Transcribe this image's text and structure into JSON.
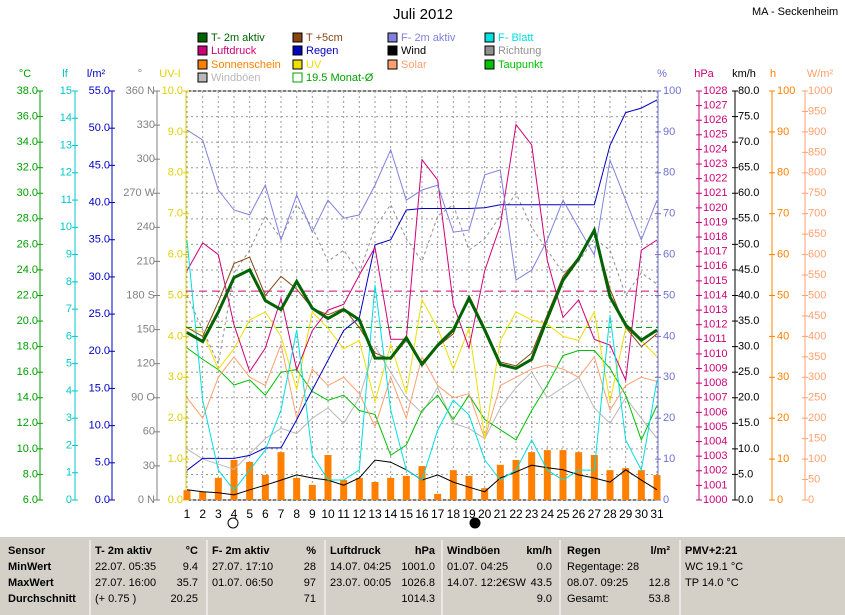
{
  "chart_data": {
    "type": "weather",
    "title": "Juli 2012",
    "station": "MA - Seckenheim",
    "grid": true,
    "x": [
      1,
      2,
      3,
      4,
      5,
      6,
      7,
      8,
      9,
      10,
      11,
      12,
      13,
      14,
      15,
      16,
      17,
      18,
      19,
      20,
      21,
      22,
      23,
      24,
      25,
      26,
      27,
      28,
      29,
      30,
      31
    ],
    "xlim": [
      1,
      31
    ],
    "axes": {
      "temp": {
        "label": "°C",
        "color": "#00a000",
        "lim": [
          6,
          38
        ],
        "ticks": [
          {
            "value": 6,
            "label": "6.0"
          },
          {
            "value": 8,
            "label": "8.0"
          },
          {
            "value": 10,
            "label": "10.0"
          },
          {
            "value": 12,
            "label": "12.0"
          },
          {
            "value": 14,
            "label": "14.0"
          },
          {
            "value": 16,
            "label": "16.0"
          },
          {
            "value": 18,
            "label": "18.0"
          },
          {
            "value": 20,
            "label": "20.0"
          },
          {
            "value": 22,
            "label": "22.0"
          },
          {
            "value": 24,
            "label": "24.0"
          },
          {
            "value": 26,
            "label": "26.0"
          },
          {
            "value": 28,
            "label": "28.0"
          },
          {
            "value": 30,
            "label": "30.0"
          },
          {
            "value": 32,
            "label": "32.0"
          },
          {
            "value": 34,
            "label": "34.0"
          },
          {
            "value": 36,
            "label": "36.0"
          },
          {
            "value": 38,
            "label": "38.0"
          }
        ]
      },
      "lf": {
        "label": "lf",
        "color": "#00c8c8",
        "lim": [
          0,
          15
        ],
        "ticks": [
          0,
          1,
          2,
          3,
          4,
          5,
          6,
          7,
          8,
          9,
          10,
          11,
          12,
          13,
          14,
          15
        ]
      },
      "rain": {
        "label": "l/m²",
        "color": "#0000c0",
        "lim": [
          0,
          55
        ],
        "ticks": [
          {
            "value": 0,
            "label": "0.0"
          },
          {
            "value": 5,
            "label": "5.0"
          },
          {
            "value": 10,
            "label": "10.0"
          },
          {
            "value": 15,
            "label": "15.0"
          },
          {
            "value": 20,
            "label": "20.0"
          },
          {
            "value": 25,
            "label": "25.0"
          },
          {
            "value": 30,
            "label": "30.0"
          },
          {
            "value": 35,
            "label": "35.0"
          },
          {
            "value": 40,
            "label": "40.0"
          },
          {
            "value": 45,
            "label": "45.0"
          },
          {
            "value": 50,
            "label": "50.0"
          },
          {
            "value": 55,
            "label": "55.0"
          }
        ]
      },
      "dir": {
        "label": "°",
        "color": "#808080",
        "lim": [
          0,
          360
        ],
        "ticks": [
          {
            "value": 0,
            "label": "0 N"
          },
          30,
          60,
          {
            "value": 90,
            "label": "90 O"
          },
          120,
          150,
          {
            "value": 180,
            "label": "180 S"
          },
          210,
          240,
          {
            "value": 270,
            "label": "270 W"
          },
          300,
          330,
          {
            "value": 360,
            "label": "360 N"
          }
        ]
      },
      "uv": {
        "label": "UV-I",
        "color": "#e0d000",
        "lim": [
          0,
          10
        ],
        "ticks": [
          {
            "value": 0,
            "label": "0.0"
          },
          {
            "value": 1,
            "label": "1.0"
          },
          {
            "value": 2,
            "label": "2.0"
          },
          {
            "value": 3,
            "label": "3.0"
          },
          {
            "value": 4,
            "label": "4.0"
          },
          {
            "value": 5,
            "label": "5.0"
          },
          {
            "value": 6,
            "label": "6.0"
          },
          {
            "value": 7,
            "label": "7.0"
          },
          {
            "value": 8,
            "label": "8.0"
          },
          {
            "value": 9,
            "label": "9.0"
          },
          {
            "value": 10,
            "label": "10.0"
          }
        ]
      },
      "hum": {
        "label": "%",
        "color": "#7070d0",
        "lim": [
          0,
          100
        ],
        "ticks": [
          0,
          10,
          20,
          30,
          40,
          50,
          60,
          70,
          80,
          90,
          100
        ]
      },
      "press": {
        "label": "hPa",
        "color": "#d0007a",
        "lim": [
          1000,
          1028
        ],
        "ticks": [
          1000,
          1001,
          1002,
          1003,
          1004,
          1005,
          1006,
          1007,
          1008,
          1009,
          1010,
          1011,
          1012,
          1013,
          1014,
          1015,
          1016,
          1017,
          1018,
          1019,
          1020,
          1021,
          1022,
          1023,
          1024,
          1025,
          1026,
          1027,
          1028
        ]
      },
      "wind": {
        "label": "km/h",
        "color": "#000000",
        "lim": [
          0,
          80
        ],
        "ticks": [
          {
            "value": 0,
            "label": "0.0"
          },
          {
            "value": 5,
            "label": "5.0"
          },
          {
            "value": 10,
            "label": "10.0"
          },
          {
            "value": 15,
            "label": "15.0"
          },
          {
            "value": 20,
            "label": "20.0"
          },
          {
            "value": 25,
            "label": "25.0"
          },
          {
            "value": 30,
            "label": "30.0"
          },
          {
            "value": 35,
            "label": "35.0"
          },
          {
            "value": 40,
            "label": "40.0"
          },
          {
            "value": 45,
            "label": "45.0"
          },
          {
            "value": 50,
            "label": "50.0"
          },
          {
            "value": 55,
            "label": "55.0"
          },
          {
            "value": 60,
            "label": "60.0"
          },
          {
            "value": 65,
            "label": "65.0"
          },
          {
            "value": 70,
            "label": "70.0"
          },
          {
            "value": 75,
            "label": "75.0"
          },
          {
            "value": 80,
            "label": "80.0"
          }
        ]
      },
      "sun": {
        "label": "h",
        "color": "#ff8000",
        "lim": [
          0,
          100
        ],
        "ticks": [
          0,
          10,
          20,
          30,
          40,
          50,
          60,
          70,
          80,
          90,
          100
        ]
      },
      "solar": {
        "label": "W/m²",
        "color": "#ffa070",
        "lim": [
          0,
          1000
        ],
        "ticks": [
          0,
          50,
          100,
          150,
          200,
          250,
          300,
          350,
          400,
          450,
          500,
          550,
          600,
          650,
          700,
          750,
          800,
          850,
          900,
          950,
          1000
        ]
      }
    },
    "series": [
      {
        "name": "T- 2m aktiv",
        "color": "#006400",
        "axis": "temp",
        "kind": "line",
        "values": [
          19.1,
          18.4,
          20.7,
          23.4,
          24.0,
          21.6,
          20.9,
          23.1,
          21.0,
          20.2,
          20.9,
          20.1,
          17.1,
          17.1,
          18.7,
          16.6,
          18.1,
          19.3,
          21.8,
          19.3,
          16.6,
          16.3,
          17.0,
          20.2,
          23.2,
          24.9,
          27.1,
          21.9,
          19.7,
          18.5,
          19.3
        ]
      },
      {
        "name": "T +5cm",
        "color": "#8b4513",
        "axis": "temp",
        "kind": "line",
        "values": [
          19.5,
          18.8,
          21.5,
          24.5,
          25.0,
          22.0,
          23.5,
          22.5,
          21.0,
          20.5,
          21.0,
          19.5,
          17.5,
          17.0,
          18.5,
          16.8,
          18.0,
          19.0,
          22.0,
          19.5,
          16.8,
          16.5,
          17.5,
          20.5,
          23.5,
          25.0,
          27.0,
          22.5,
          19.5,
          18.0,
          19.0
        ]
      },
      {
        "name": "F- 2m aktiv",
        "color": "#8080e0",
        "axis": "hum",
        "kind": "line",
        "values": [
          90.5,
          88.0,
          75.8,
          70.9,
          69.7,
          77.0,
          63.6,
          74.6,
          65.5,
          73.3,
          68.9,
          69.7,
          77.0,
          85.6,
          73.3,
          75.8,
          77.0,
          65.5,
          66.0,
          79.5,
          80.7,
          53.8,
          56.2,
          63.6,
          73.3,
          66.5,
          59.9,
          83.1,
          73.3,
          63.6,
          73.3
        ]
      },
      {
        "name": "F- Blatt",
        "color": "#00e0e0",
        "axis": "hum",
        "kind": "line",
        "values": [
          63.6,
          24.4,
          7.3,
          2.4,
          7.3,
          12.2,
          22.0,
          41.6,
          11.0,
          4.9,
          4.9,
          7.3,
          52.6,
          22.0,
          7.3,
          4.9,
          17.1,
          24.4,
          20.8,
          9.8,
          4.9,
          7.3,
          14.7,
          7.3,
          4.9,
          7.3,
          7.3,
          45.2,
          14.7,
          7.3,
          29.3
        ]
      },
      {
        "name": "Luftdruck",
        "color": "#d0007a",
        "axis": "press",
        "kind": "line",
        "values": [
          1015.7,
          1017.6,
          1016.8,
          1012.0,
          1008.8,
          1010.4,
          1013.8,
          1008.9,
          1011.6,
          1013.0,
          1013.4,
          1015.4,
          1017.3,
          1011.0,
          1011.0,
          1023.3,
          1021.9,
          1013.4,
          1010.4,
          1015.7,
          1018.8,
          1025.7,
          1024.3,
          1016.4,
          1012.5,
          1013.7,
          1011.0,
          1010.6,
          1008.2,
          1017.1,
          1017.8
        ]
      },
      {
        "name": "Regen",
        "color": "#0000c0",
        "axis": "rain",
        "kind": "line",
        "values": [
          4.0,
          5.6,
          5.6,
          5.6,
          6.0,
          7.0,
          7.0,
          10.8,
          14.8,
          18.8,
          22.8,
          24.5,
          34.3,
          35.0,
          39.0,
          39.2,
          39.2,
          39.2,
          39.2,
          39.3,
          39.7,
          39.7,
          39.7,
          39.7,
          39.7,
          39.7,
          39.7,
          47.7,
          52.1,
          52.7,
          53.8
        ]
      },
      {
        "name": "Wind",
        "color": "#000000",
        "axis": "wind",
        "kind": "line",
        "values": [
          2.0,
          1.6,
          1.4,
          1.0,
          2.0,
          2.9,
          3.9,
          4.9,
          4.3,
          3.9,
          2.9,
          4.3,
          7.8,
          7.4,
          5.9,
          3.9,
          4.9,
          3.5,
          2.5,
          1.6,
          4.3,
          5.5,
          6.8,
          6.3,
          5.9,
          4.9,
          4.3,
          3.5,
          5.9,
          3.9,
          2.0
        ]
      },
      {
        "name": "Richtung",
        "color": "#909090",
        "axis": "dir",
        "kind": "line",
        "dash": true,
        "values": [
          180,
          150,
          120,
          200,
          220,
          250,
          230,
          260,
          240,
          210,
          220,
          200,
          240,
          260,
          230,
          210,
          250,
          260,
          220,
          230,
          250,
          270,
          240,
          220,
          200,
          210,
          230,
          220,
          180,
          200,
          190
        ]
      },
      {
        "name": "Sonnenschein",
        "color": "#ff8000",
        "axis": "sun",
        "kind": "bar",
        "values": [
          2.4,
          2.0,
          5.4,
          9.8,
          9.3,
          6.1,
          11.7,
          5.4,
          3.7,
          11.0,
          4.9,
          5.4,
          4.4,
          5.4,
          5.9,
          8.3,
          1.5,
          7.3,
          5.9,
          2.9,
          8.6,
          9.8,
          11.7,
          12.2,
          12.2,
          11.7,
          11.0,
          7.3,
          7.8,
          7.3,
          6.1
        ]
      },
      {
        "name": "UV",
        "color": "#f0e000",
        "axis": "uv",
        "kind": "line",
        "values": [
          4.2,
          4.1,
          3.2,
          3.7,
          4.4,
          4.6,
          4.0,
          2.7,
          4.6,
          4.2,
          3.7,
          3.9,
          2.4,
          3.8,
          2.6,
          4.9,
          4.2,
          3.2,
          4.2,
          1.5,
          3.9,
          4.6,
          4.4,
          4.3,
          4.0,
          3.9,
          4.6,
          2.4,
          4.2,
          3.9,
          3.5
        ]
      },
      {
        "name": "Solar",
        "color": "#ffa070",
        "axis": "solar",
        "kind": "line",
        "values": [
          250,
          200,
          300,
          350,
          300,
          280,
          380,
          200,
          320,
          280,
          300,
          260,
          180,
          300,
          200,
          350,
          280,
          250,
          260,
          150,
          280,
          300,
          320,
          330,
          320,
          300,
          350,
          220,
          280,
          300,
          290
        ]
      },
      {
        "name": "Taupunkt",
        "color": "#00c000",
        "axis": "temp",
        "kind": "line",
        "values": [
          17.9,
          17.0,
          16.2,
          15.0,
          15.4,
          14.2,
          16.0,
          16.2,
          14.5,
          13.8,
          14.2,
          13.0,
          12.7,
          9.5,
          10.3,
          13.0,
          14.2,
          12.3,
          14.2,
          12.3,
          11.5,
          10.7,
          13.0,
          15.0,
          17.3,
          17.7,
          17.7,
          16.3,
          14.2,
          10.7,
          13.4
        ]
      },
      {
        "name": "Windböen",
        "color": "#b8b8b8",
        "axis": "wind",
        "kind": "line",
        "values": [
          10,
          8,
          7,
          6,
          9,
          12,
          14,
          13,
          16,
          18,
          15,
          20,
          30,
          25,
          20,
          17,
          22,
          15,
          14,
          12,
          18,
          22,
          25,
          20,
          22,
          24,
          18,
          15,
          20,
          16,
          12
        ]
      }
    ],
    "monthly_mean": {
      "value": 19.5,
      "label": "19.5 Monat-Ø",
      "color": "#00a000",
      "axis": "temp"
    },
    "pressure_avg": 1014.3
  },
  "table": {
    "header": [
      "Sensor",
      "T- 2m aktiv",
      "°C",
      "F- 2m aktiv",
      "%",
      "Luftdruck",
      "hPa",
      "Windböen",
      "km/h",
      "Regen",
      "l/m²",
      "PMV+2:21"
    ],
    "rows": [
      [
        "MinWert",
        "22.07.  05:35",
        "9.4",
        "27.07.  17:10",
        "28",
        "14.07.  04:25",
        "1001.0",
        "01.07.  04:25",
        "0.0",
        "Regentage: 28",
        null,
        "WC 19.1 °C"
      ],
      [
        "MaxWert",
        "27.07.  16:00",
        "35.7",
        "01.07.  06:50",
        "97",
        "23.07.  00:05",
        "1026.8",
        "14.07.  12:2€SW",
        "43.5",
        "08.07.  09:25",
        "12.8",
        "TP 14.0 °C"
      ],
      [
        "Durchschnitt",
        "(+ 0.75 )",
        "20.25",
        null,
        "71",
        null,
        "1014.3",
        null,
        "9.0",
        "Gesamt:",
        "53.8",
        null
      ]
    ]
  }
}
